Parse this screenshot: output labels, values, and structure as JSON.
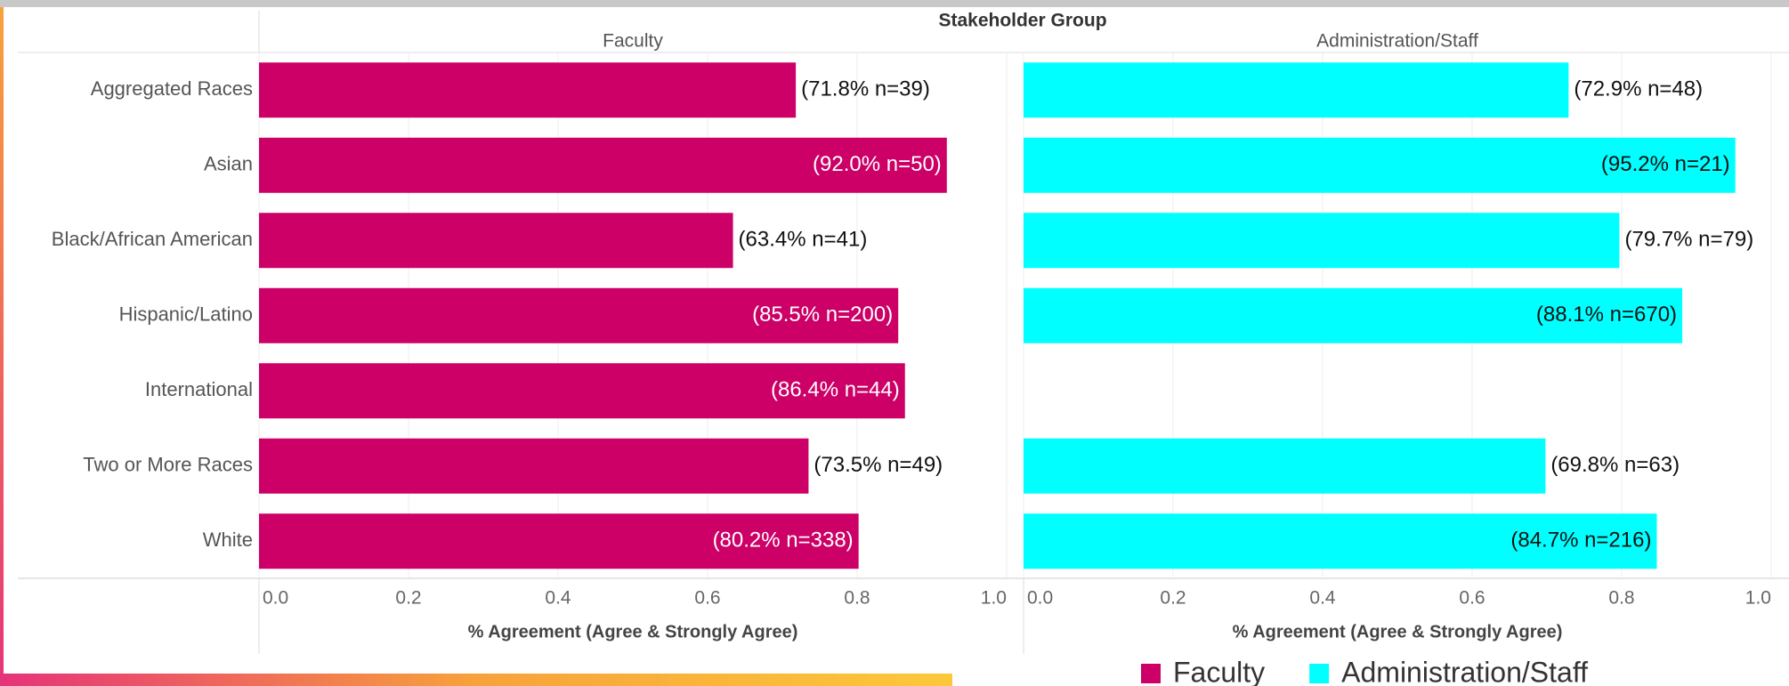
{
  "chart_data": {
    "type": "bar",
    "orientation": "horizontal",
    "title": "Stakeholder Group",
    "categories": [
      "Aggregated Races",
      "Asian",
      "Black/African American",
      "Hispanic/Latino",
      "International",
      "Two or More Races",
      "White"
    ],
    "series": [
      {
        "name": "Faculty",
        "color": "#cc0066",
        "values": [
          0.718,
          0.92,
          0.634,
          0.855,
          0.864,
          0.735,
          0.802
        ],
        "value_labels": [
          "(71.8% n=39)",
          "(92.0% n=50)",
          "(63.4% n=41)",
          "(85.5% n=200)",
          "(86.4% n=44)",
          "(73.5% n=49)",
          "(80.2% n=338)"
        ]
      },
      {
        "name": "Administration/Staff",
        "color": "#00ffff",
        "values": [
          0.729,
          0.952,
          0.797,
          0.881,
          null,
          0.698,
          0.847
        ],
        "value_labels": [
          "(72.9% n=48)",
          "(95.2% n=21)",
          "(79.7% n=79)",
          "(88.1% n=670)",
          null,
          "(69.8% n=63)",
          "(84.7% n=216)"
        ]
      }
    ],
    "xlabel": "% Agreement (Agree & Strongly Agree)",
    "xlim": [
      0,
      1
    ],
    "xticks": [
      {
        "value": 0,
        "label": "0.0"
      },
      {
        "value": 0.2,
        "label": "0.2"
      },
      {
        "value": 0.4,
        "label": "0.4"
      },
      {
        "value": 0.6,
        "label": "0.6"
      },
      {
        "value": 0.8,
        "label": "0.8"
      },
      {
        "value": 1,
        "label": "1.0"
      }
    ],
    "grid": true,
    "legend": "bottom-right"
  }
}
